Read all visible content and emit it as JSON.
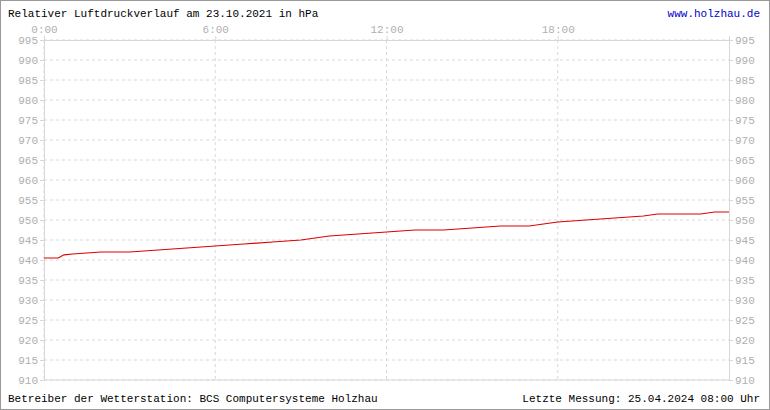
{
  "chart_data": {
    "type": "line",
    "title": "Relativer Luftdruckverlauf am 23.10.2021 in hPa",
    "annotations": [
      "www.holzhau.de",
      "Betreiber der Wetterstation: BCS Computersysteme Holzhau",
      "Letzte Messung: 25.04.2024 08:00 Uhr"
    ],
    "x": [
      0,
      0.5,
      0.7,
      1,
      2,
      3,
      4,
      5,
      6,
      7,
      8,
      9,
      10,
      11,
      12,
      13,
      14,
      15,
      16,
      17,
      18,
      19,
      20,
      21,
      21.5,
      22,
      23,
      23.5,
      24
    ],
    "values": [
      940.5,
      940.5,
      941.3,
      941.5,
      942,
      942,
      942.5,
      943,
      943.5,
      944,
      944.5,
      945,
      946,
      946.5,
      947,
      947.5,
      947.5,
      948,
      948.5,
      948.5,
      949.5,
      950,
      950.5,
      951,
      951.5,
      951.5,
      951.5,
      952,
      952
    ],
    "color": "#dd0000",
    "xlim": [
      0,
      24
    ],
    "xticks": [
      {
        "value": 0,
        "label": "0:00"
      },
      {
        "value": 6,
        "label": "6:00"
      },
      {
        "value": 12,
        "label": "12:00"
      },
      {
        "value": 18,
        "label": "18:00"
      }
    ],
    "ylim": [
      910,
      995
    ],
    "yticks": [
      910,
      915,
      920,
      925,
      930,
      935,
      940,
      945,
      950,
      955,
      960,
      965,
      970,
      975,
      980,
      985,
      990,
      995
    ],
    "grid": true
  }
}
